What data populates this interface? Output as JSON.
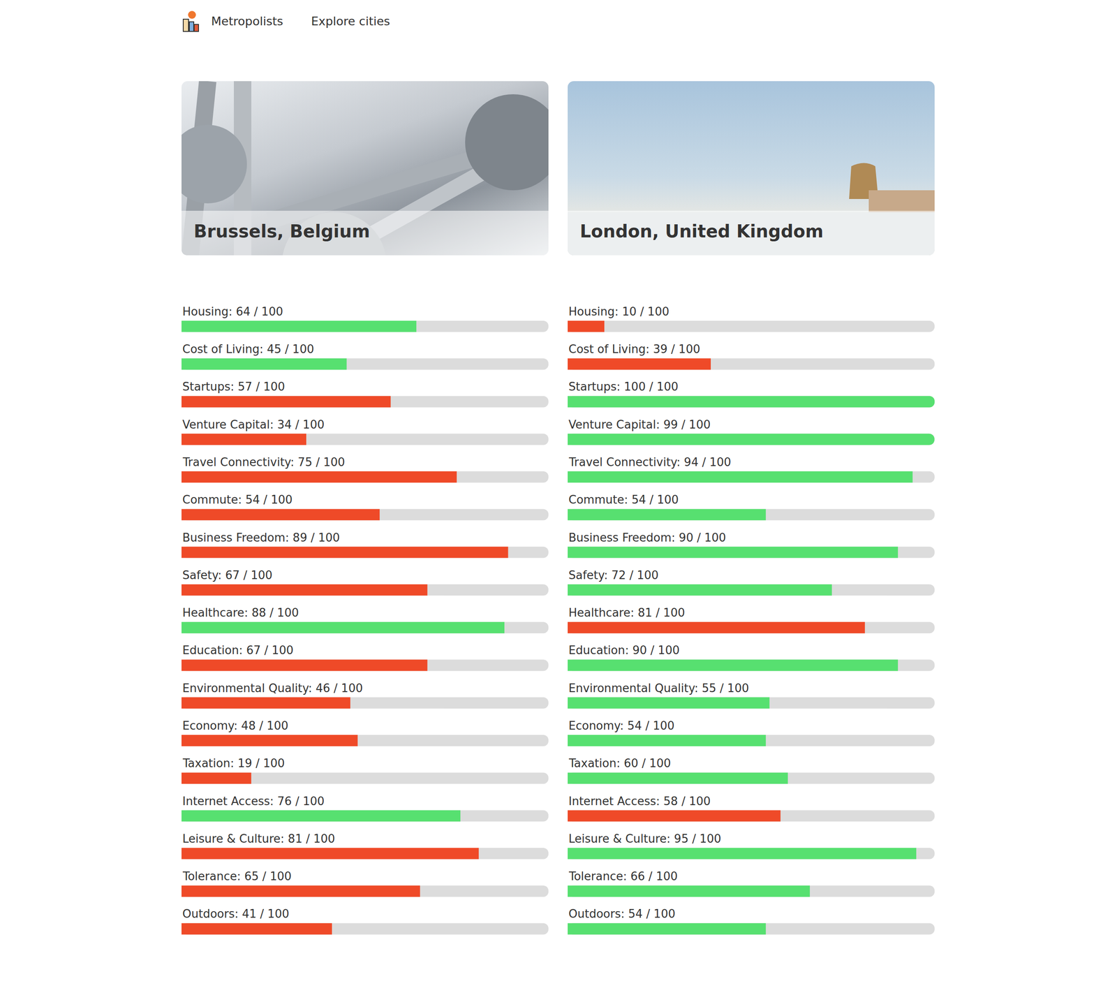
{
  "nav": {
    "brand": "Metropolists",
    "link": "Explore cities"
  },
  "chart_data": [
    {
      "type": "bar",
      "orientation": "horizontal",
      "title": "Brussels, Belgium",
      "tick_labels": false,
      "xlim": [
        0,
        100
      ],
      "categories": [
        "Housing: 64 / 100",
        "Cost of Living: 45 / 100",
        "Startups: 57 / 100",
        "Venture Capital: 34 / 100",
        "Travel Connectivity: 75 / 100",
        "Commute: 54 / 100",
        "Business Freedom: 89 / 100",
        "Safety: 67 / 100",
        "Healthcare: 88 / 100",
        "Education: 67 / 100",
        "Environmental Quality: 46 / 100",
        "Economy: 48 / 100",
        "Taxation: 19 / 100",
        "Internet Access: 76 / 100",
        "Leisure & Culture: 81 / 100",
        "Tolerance: 65 / 100",
        "Outdoors: 41 / 100"
      ],
      "values": [
        64,
        45,
        57,
        34,
        75,
        54,
        89,
        67,
        88,
        67,
        46,
        48,
        19,
        76,
        81,
        65,
        41
      ],
      "colors": [
        "#57e070",
        "#57e070",
        "#ef4a28",
        "#ef4a28",
        "#ef4a28",
        "#ef4a28",
        "#ef4a28",
        "#ef4a28",
        "#57e070",
        "#ef4a28",
        "#ef4a28",
        "#ef4a28",
        "#ef4a28",
        "#57e070",
        "#ef4a28",
        "#ef4a28",
        "#ef4a28"
      ]
    },
    {
      "type": "bar",
      "orientation": "horizontal",
      "title": "London, United Kingdom",
      "tick_labels": false,
      "xlim": [
        0,
        100
      ],
      "categories": [
        "Housing: 10 / 100",
        "Cost of Living: 39 / 100",
        "Startups: 100 / 100",
        "Venture Capital: 99 / 100",
        "Travel Connectivity: 94 / 100",
        "Commute: 54 / 100",
        "Business Freedom: 90 / 100",
        "Safety: 72 / 100",
        "Healthcare: 81 / 100",
        "Education: 90 / 100",
        "Environmental Quality: 55 / 100",
        "Economy: 54 / 100",
        "Taxation: 60 / 100",
        "Internet Access: 58 / 100",
        "Leisure & Culture: 95 / 100",
        "Tolerance: 66 / 100",
        "Outdoors: 54 / 100"
      ],
      "values": [
        10,
        39,
        100,
        99,
        94,
        54,
        90,
        72,
        81,
        90,
        55,
        54,
        60,
        58,
        95,
        66,
        54
      ],
      "colors": [
        "#ef4a28",
        "#ef4a28",
        "#57e070",
        "#57e070",
        "#57e070",
        "#57e070",
        "#57e070",
        "#57e070",
        "#ef4a28",
        "#57e070",
        "#57e070",
        "#57e070",
        "#57e070",
        "#ef4a28",
        "#57e070",
        "#57e070",
        "#57e070"
      ]
    }
  ]
}
